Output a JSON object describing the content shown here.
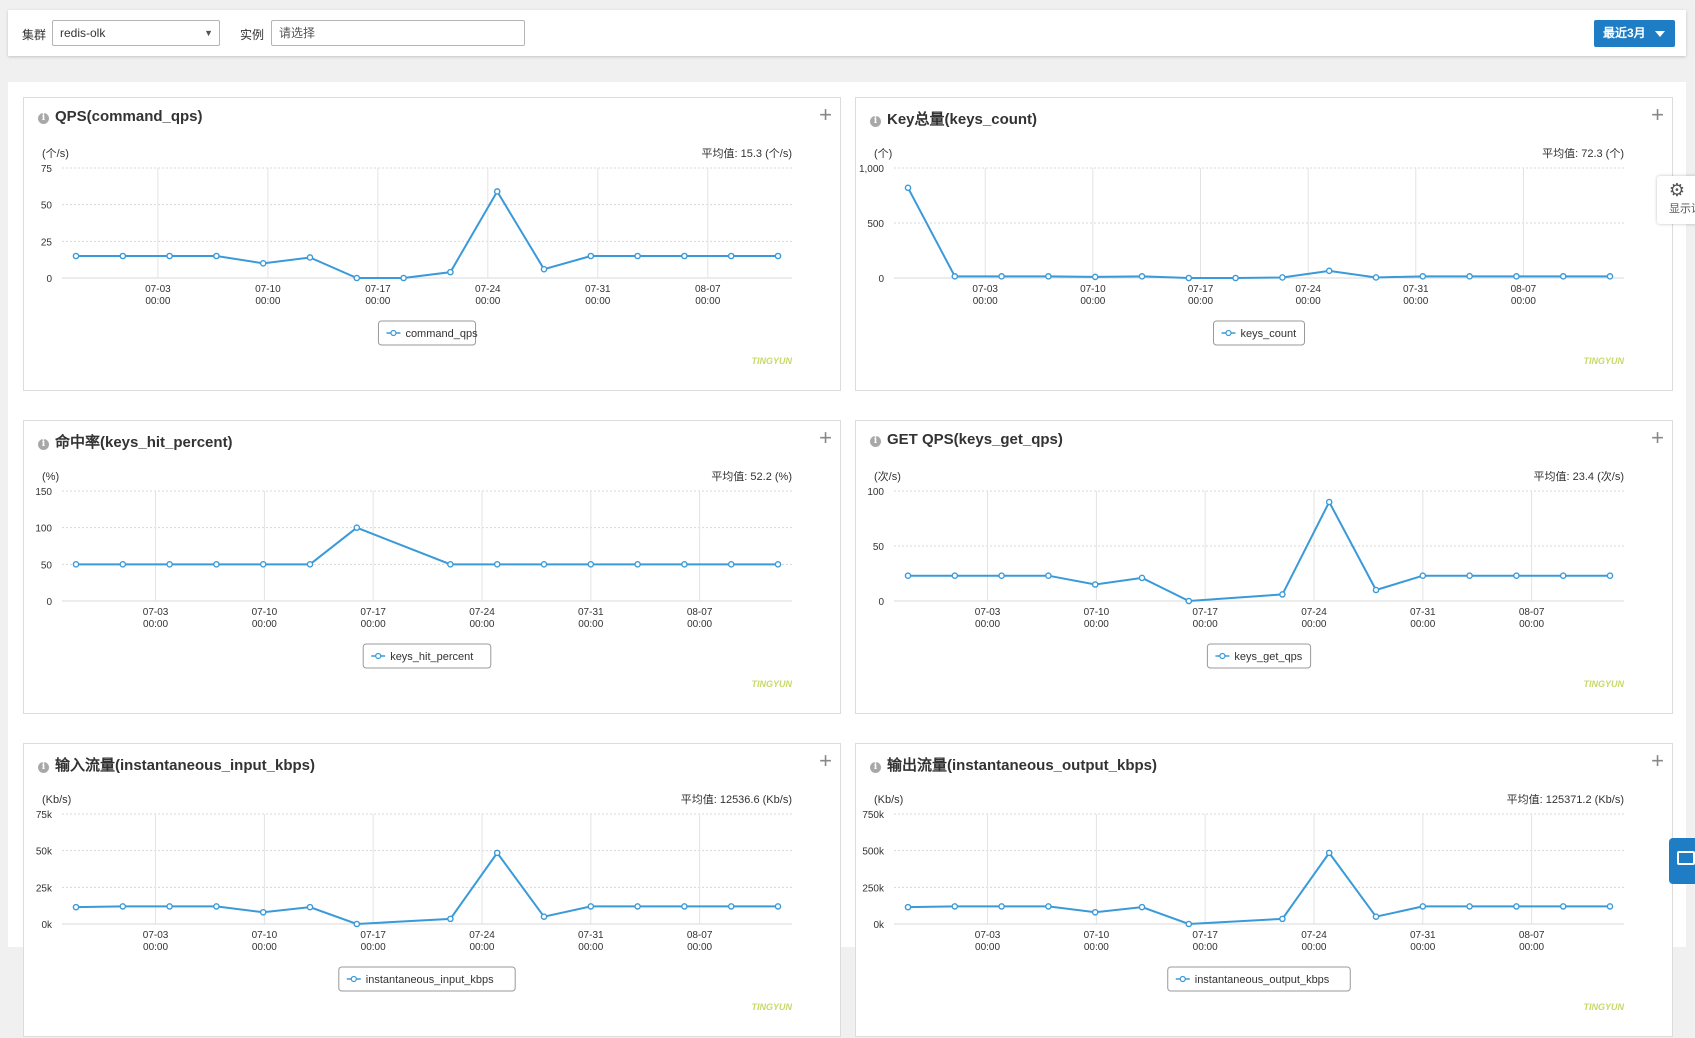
{
  "filters": {
    "cluster_label": "集群",
    "cluster_value": "redis-olk",
    "instance_label": "实例",
    "instance_placeholder": "请选择",
    "range_label": "最近3月"
  },
  "side": {
    "display_settings": "显示设置"
  },
  "panels": [
    {
      "title": "QPS(command_qps)",
      "unit": "(个/s)",
      "avg": "平均值: 15.3 (个/s)",
      "legend": "command_qps",
      "watermark": "TINGYUN",
      "chart_data": {
        "type": "line",
        "y_ticks": [
          "75",
          "50",
          "25",
          "0"
        ],
        "ylim": [
          0,
          75
        ],
        "x_ticks": [
          [
            "07-03",
            "00:00"
          ],
          [
            "07-10",
            "00:00"
          ],
          [
            "07-17",
            "00:00"
          ],
          [
            "07-24",
            "00:00"
          ],
          [
            "07-31",
            "00:00"
          ],
          [
            "08-07",
            "00:00"
          ]
        ],
        "x_positions": [
          1.75,
          4.1,
          6.45,
          8.8,
          11.15,
          13.5
        ],
        "series": [
          {
            "name": "command_qps",
            "x": [
              0,
              1,
              2,
              3,
              4,
              5,
              6,
              7,
              8,
              9,
              10,
              11,
              12,
              13,
              14,
              15
            ],
            "values": [
              15,
              15,
              15,
              15,
              10,
              14,
              0,
              0,
              4,
              59,
              6,
              15,
              15,
              15,
              15,
              15
            ]
          }
        ]
      }
    },
    {
      "title": "Key总量(keys_count)",
      "unit": "(个)",
      "avg": "平均值: 72.3 (个)",
      "legend": "keys_count",
      "watermark": "TINGYUN",
      "chart_data": {
        "type": "line",
        "y_ticks": [
          "1,000",
          "500",
          "0"
        ],
        "ylim": [
          0,
          1000
        ],
        "x_ticks": [
          [
            "07-03",
            "00:00"
          ],
          [
            "07-10",
            "00:00"
          ],
          [
            "07-17",
            "00:00"
          ],
          [
            "07-24",
            "00:00"
          ],
          [
            "07-31",
            "00:00"
          ],
          [
            "08-07",
            "00:00"
          ]
        ],
        "x_positions": [
          1.65,
          3.95,
          6.25,
          8.55,
          10.85,
          13.15
        ],
        "series": [
          {
            "name": "keys_count",
            "x": [
              0,
              1,
              2,
              3,
              4,
              5,
              6,
              7,
              8,
              9,
              10,
              11,
              12,
              13,
              14,
              15
            ],
            "values": [
              820,
              15,
              15,
              15,
              10,
              15,
              0,
              0,
              5,
              65,
              5,
              15,
              15,
              15,
              15,
              15
            ]
          }
        ]
      }
    },
    {
      "title": "命中率(keys_hit_percent)",
      "unit": "(%)",
      "avg": "平均值: 52.2 (%)",
      "legend": "keys_hit_percent",
      "watermark": "TINGYUN",
      "chart_data": {
        "type": "line",
        "y_ticks": [
          "150",
          "100",
          "50",
          "0"
        ],
        "ylim": [
          0,
          150
        ],
        "x_ticks": [
          [
            "07-03",
            "00:00"
          ],
          [
            "07-10",
            "00:00"
          ],
          [
            "07-17",
            "00:00"
          ],
          [
            "07-24",
            "00:00"
          ],
          [
            "07-31",
            "00:00"
          ],
          [
            "08-07",
            "00:00"
          ]
        ],
        "x_positions": [
          1.7,
          4.025,
          6.35,
          8.675,
          11.0,
          13.325
        ],
        "series": [
          {
            "name": "keys_hit_percent",
            "x": [
              0,
              1,
              2,
              3,
              4,
              5,
              6,
              8,
              9,
              10,
              11,
              12,
              13,
              14,
              15
            ],
            "values": [
              50,
              50,
              50,
              50,
              50,
              50,
              100,
              50,
              50,
              50,
              50,
              50,
              50,
              50,
              50
            ]
          }
        ]
      }
    },
    {
      "title": "GET QPS(keys_get_qps)",
      "unit": "(次/s)",
      "avg": "平均值: 23.4 (次/s)",
      "legend": "keys_get_qps",
      "watermark": "TINGYUN",
      "chart_data": {
        "type": "line",
        "y_ticks": [
          "100",
          "50",
          "0"
        ],
        "ylim": [
          0,
          100
        ],
        "x_ticks": [
          [
            "07-03",
            "00:00"
          ],
          [
            "07-10",
            "00:00"
          ],
          [
            "07-17",
            "00:00"
          ],
          [
            "07-24",
            "00:00"
          ],
          [
            "07-31",
            "00:00"
          ],
          [
            "08-07",
            "00:00"
          ]
        ],
        "x_positions": [
          1.7,
          4.025,
          6.35,
          8.675,
          11.0,
          13.325
        ],
        "series": [
          {
            "name": "keys_get_qps",
            "x": [
              0,
              1,
              2,
              3,
              4,
              5,
              6,
              8,
              9,
              10,
              11,
              12,
              13,
              14,
              15
            ],
            "values": [
              23,
              23,
              23,
              23,
              15,
              21,
              0,
              6,
              90,
              10,
              23,
              23,
              23,
              23,
              23
            ]
          }
        ]
      }
    },
    {
      "title": "输入流量(instantaneous_input_kbps)",
      "unit": "(Kb/s)",
      "avg": "平均值: 12536.6 (Kb/s)",
      "legend": "instantaneous_input_kbps",
      "watermark": "TINGYUN",
      "chart_data": {
        "type": "line",
        "y_ticks": [
          "75k",
          "50k",
          "25k",
          "0k"
        ],
        "ylim": [
          0,
          75000
        ],
        "x_ticks": [
          [
            "07-03",
            "00:00"
          ],
          [
            "07-10",
            "00:00"
          ],
          [
            "07-17",
            "00:00"
          ],
          [
            "07-24",
            "00:00"
          ],
          [
            "07-31",
            "00:00"
          ],
          [
            "08-07",
            "00:00"
          ]
        ],
        "x_positions": [
          1.7,
          4.025,
          6.35,
          8.675,
          11.0,
          13.325
        ],
        "series": [
          {
            "name": "instantaneous_input_kbps",
            "x": [
              0,
              1,
              2,
              3,
              4,
              5,
              6,
              8,
              9,
              10,
              11,
              12,
              13,
              14,
              15
            ],
            "values": [
              11500,
              12000,
              12000,
              12000,
              8000,
              11500,
              0,
              3500,
              48500,
              5000,
              12000,
              12000,
              12000,
              12000,
              12000
            ]
          }
        ]
      }
    },
    {
      "title": "输出流量(instantaneous_output_kbps)",
      "unit": "(Kb/s)",
      "avg": "平均值: 125371.2 (Kb/s)",
      "legend": "instantaneous_output_kbps",
      "watermark": "TINGYUN",
      "chart_data": {
        "type": "line",
        "y_ticks": [
          "750k",
          "500k",
          "250k",
          "0k"
        ],
        "ylim": [
          0,
          750000
        ],
        "x_ticks": [
          [
            "07-03",
            "00:00"
          ],
          [
            "07-10",
            "00:00"
          ],
          [
            "07-17",
            "00:00"
          ],
          [
            "07-24",
            "00:00"
          ],
          [
            "07-31",
            "00:00"
          ],
          [
            "08-07",
            "00:00"
          ]
        ],
        "x_positions": [
          1.7,
          4.025,
          6.35,
          8.675,
          11.0,
          13.325
        ],
        "series": [
          {
            "name": "instantaneous_output_kbps",
            "x": [
              0,
              1,
              2,
              3,
              4,
              5,
              6,
              8,
              9,
              10,
              11,
              12,
              13,
              14,
              15
            ],
            "values": [
              115000,
              120000,
              120000,
              120000,
              80000,
              115000,
              0,
              35000,
              485000,
              50000,
              120000,
              120000,
              120000,
              120000,
              120000
            ]
          }
        ]
      }
    }
  ],
  "colors": {
    "line": "#3a9ad9",
    "primary": "#1f7dc5",
    "watermark": "#c8d86a"
  }
}
